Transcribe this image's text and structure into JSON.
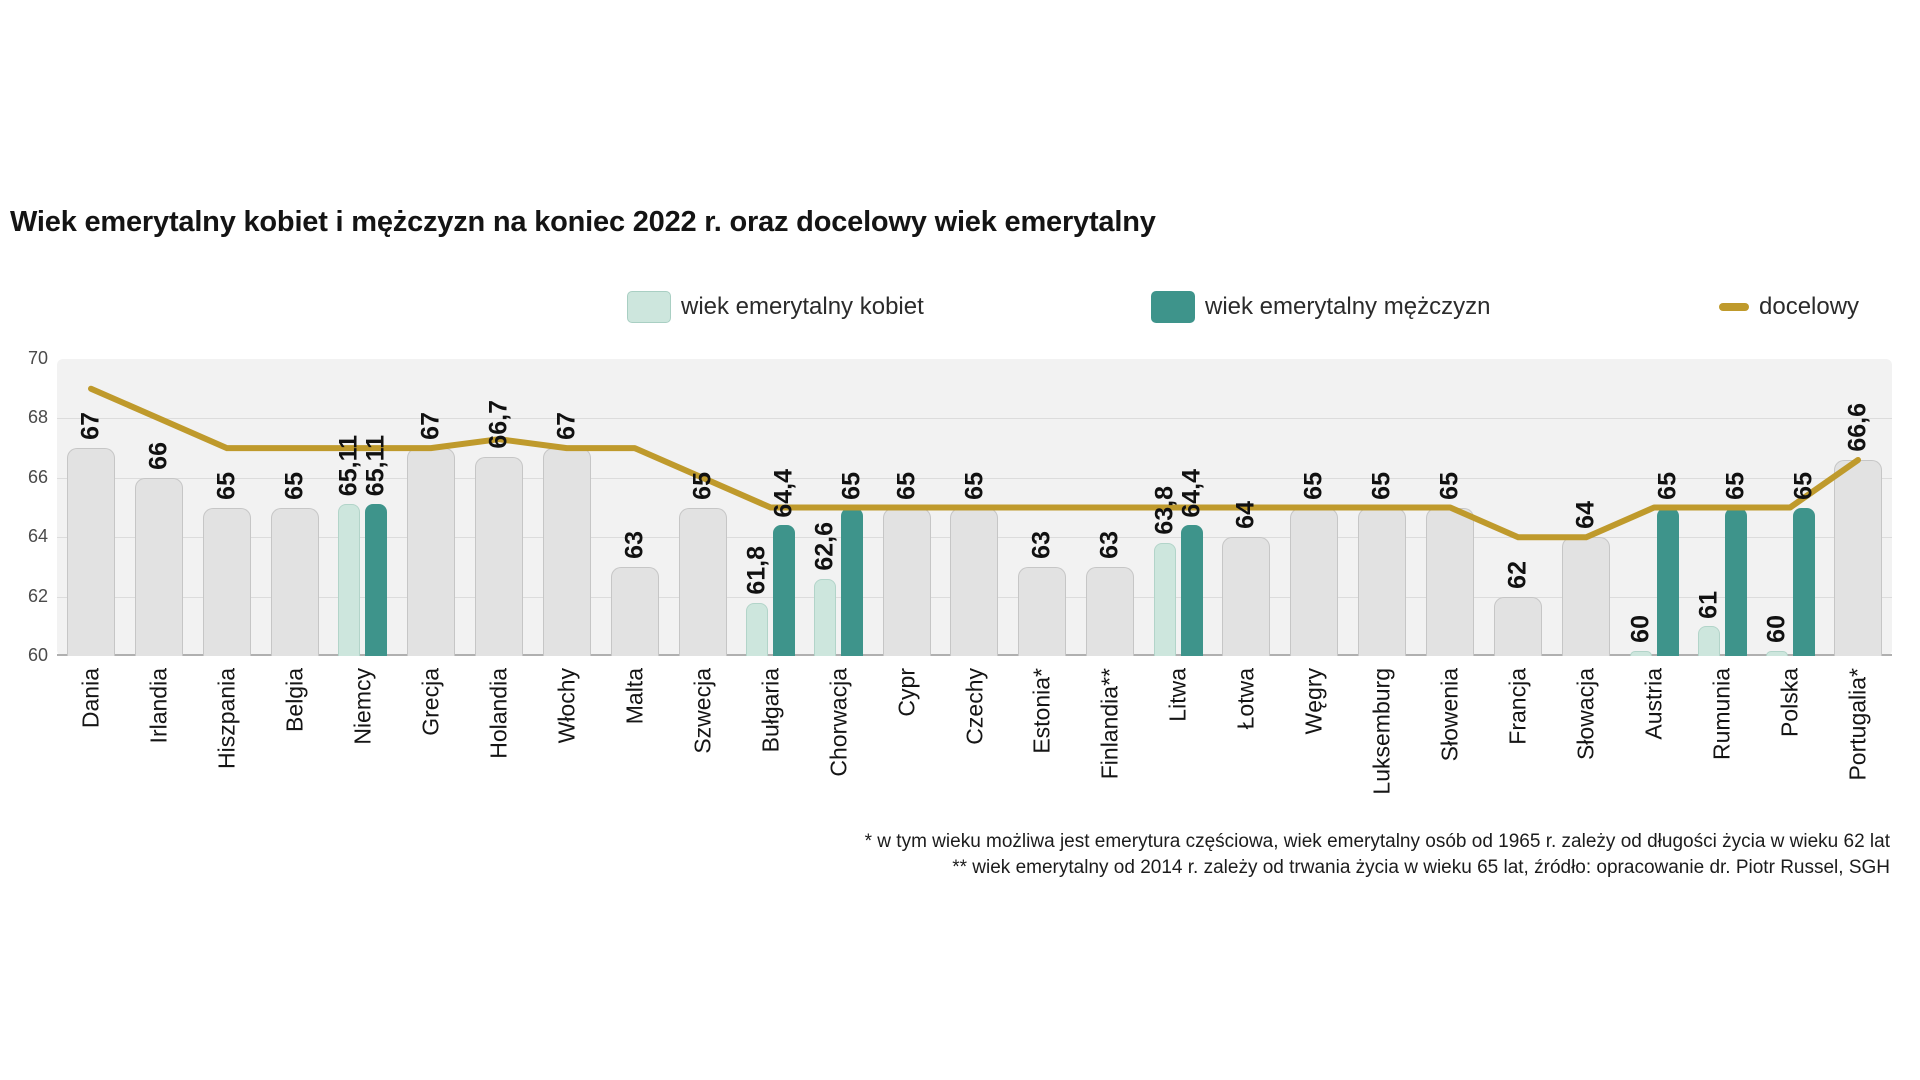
{
  "title": "Wiek emerytalny kobiet i mężczyzn na koniec 2022 r. oraz docelowy wiek emerytalny",
  "legend": {
    "women": "wiek emerytalny kobiet",
    "men": "wiek emerytalny mężczyzn",
    "target": "docelowy"
  },
  "footnotes": [
    "* w tym wieku możliwa jest emerytura częściowa, wiek emerytalny osób od 1965 r. zależy od długości życia w wieku 62 lat",
    "** wiek emerytalny od 2014 r. zależy od trwania życia w wieku 65 lat, źródło: opracowanie dr. Piotr Russel, SGH"
  ],
  "y_axis": {
    "min": 60,
    "max": 70,
    "ticks": [
      70,
      68,
      66,
      64,
      62,
      60
    ]
  },
  "colors": {
    "women": "#cde6dd",
    "men": "#3e948b",
    "neutral": "#e2e2e2",
    "neutral_border": "#c6c6c6",
    "target_line": "#bf9a2c",
    "plot_bg": "#f2f2f2"
  },
  "chart_data": {
    "type": "bar",
    "title": "Wiek emerytalny kobiet i mężczyzn na koniec 2022 r. oraz docelowy wiek emerytalny",
    "ylim": [
      60,
      70
    ],
    "grid": true,
    "legend_position": "top",
    "categories": [
      "Dania",
      "Irlandia",
      "Hiszpania",
      "Belgia",
      "Niemcy",
      "Grecja",
      "Holandia",
      "Włochy",
      "Malta",
      "Szwecja",
      "Bułgaria",
      "Chorwacja",
      "Cypr",
      "Czechy",
      "Estonia*",
      "Finlandia**",
      "Litwa",
      "Łotwa",
      "Węgry",
      "Luksemburg",
      "Słowenia",
      "Francja",
      "Słowacja",
      "Austria",
      "Rumunia",
      "Polska",
      "Portugalia*"
    ],
    "series": [
      {
        "name": "wiek emerytalny kobiet",
        "type": "bar",
        "values": [
          67,
          66,
          65,
          65,
          65.11,
          67,
          66.7,
          67,
          63,
          65,
          61.8,
          62.6,
          65,
          65,
          63,
          63,
          63.8,
          64,
          65,
          65,
          65,
          62,
          64,
          60,
          61,
          60,
          66.6
        ]
      },
      {
        "name": "wiek emerytalny mężczyzn",
        "type": "bar",
        "values": [
          67,
          66,
          65,
          65,
          65.11,
          67,
          66.7,
          67,
          63,
          65,
          64.4,
          65,
          65,
          65,
          63,
          63,
          64.4,
          64,
          65,
          65,
          65,
          62,
          64,
          65,
          65,
          65,
          66.6
        ]
      },
      {
        "name": "docelowy",
        "type": "line",
        "values": [
          69,
          68,
          67,
          67,
          67,
          67,
          67.3,
          67,
          67,
          66,
          65,
          65,
          65,
          65,
          65,
          65,
          65,
          65,
          65,
          65,
          65,
          64,
          64,
          65,
          65,
          65,
          66.6
        ]
      }
    ],
    "countries": [
      {
        "name": "Dania",
        "same": true,
        "women": 67,
        "men": 67,
        "label": "67",
        "target": 69
      },
      {
        "name": "Irlandia",
        "same": true,
        "women": 66,
        "men": 66,
        "label": "66",
        "target": 68
      },
      {
        "name": "Hiszpania",
        "same": true,
        "women": 65,
        "men": 65,
        "label": "65",
        "target": 67
      },
      {
        "name": "Belgia",
        "same": true,
        "women": 65,
        "men": 65,
        "label": "65",
        "target": 67
      },
      {
        "name": "Niemcy",
        "same": false,
        "women": 65.11,
        "men": 65.11,
        "women_label": "65,11",
        "men_label": "65,11",
        "target": 67
      },
      {
        "name": "Grecja",
        "same": true,
        "women": 67,
        "men": 67,
        "label": "67",
        "target": 67
      },
      {
        "name": "Holandia",
        "same": true,
        "women": 66.7,
        "men": 66.7,
        "label": "66,7",
        "target": 67.3
      },
      {
        "name": "Włochy",
        "same": true,
        "women": 67,
        "men": 67,
        "label": "67",
        "target": 67
      },
      {
        "name": "Malta",
        "same": true,
        "women": 63,
        "men": 63,
        "label": "63",
        "target": 67
      },
      {
        "name": "Szwecja",
        "same": true,
        "women": 65,
        "men": 65,
        "label": "65",
        "target": 66
      },
      {
        "name": "Bułgaria",
        "same": false,
        "women": 61.8,
        "men": 64.4,
        "women_label": "61,8",
        "men_label": "64,4",
        "target": 65
      },
      {
        "name": "Chorwacja",
        "same": false,
        "women": 62.6,
        "men": 65,
        "women_label": "62,6",
        "men_label": "65",
        "target": 65
      },
      {
        "name": "Cypr",
        "same": true,
        "women": 65,
        "men": 65,
        "label": "65",
        "target": 65
      },
      {
        "name": "Czechy",
        "same": true,
        "women": 65,
        "men": 65,
        "label": "65",
        "target": 65
      },
      {
        "name": "Estonia*",
        "same": true,
        "women": 63,
        "men": 63,
        "label": "63",
        "target": 65
      },
      {
        "name": "Finlandia**",
        "same": true,
        "women": 63,
        "men": 63,
        "label": "63",
        "target": 65
      },
      {
        "name": "Litwa",
        "same": false,
        "women": 63.8,
        "men": 64.4,
        "women_label": "63,8",
        "men_label": "64,4",
        "target": 65
      },
      {
        "name": "Łotwa",
        "same": true,
        "women": 64,
        "men": 64,
        "label": "64",
        "target": 65
      },
      {
        "name": "Węgry",
        "same": true,
        "women": 65,
        "men": 65,
        "label": "65",
        "target": 65
      },
      {
        "name": "Luksemburg",
        "same": true,
        "women": 65,
        "men": 65,
        "label": "65",
        "target": 65
      },
      {
        "name": "Słowenia",
        "same": true,
        "women": 65,
        "men": 65,
        "label": "65",
        "target": 65
      },
      {
        "name": "Francja",
        "same": true,
        "women": 62,
        "men": 62,
        "label": "62",
        "target": 64
      },
      {
        "name": "Słowacja",
        "same": true,
        "women": 64,
        "men": 64,
        "label": "64",
        "target": 64
      },
      {
        "name": "Austria",
        "same": false,
        "women": 60,
        "men": 65,
        "women_label": "60",
        "men_label": "65",
        "target": 65
      },
      {
        "name": "Rumunia",
        "same": false,
        "women": 61,
        "men": 65,
        "women_label": "61",
        "men_label": "65",
        "target": 65
      },
      {
        "name": "Polska",
        "same": false,
        "women": 60,
        "men": 65,
        "women_label": "60",
        "men_label": "65",
        "target": 65
      },
      {
        "name": "Portugalia*",
        "same": true,
        "women": 66.6,
        "men": 66.6,
        "label": "66,6",
        "target": 66.6
      }
    ]
  }
}
